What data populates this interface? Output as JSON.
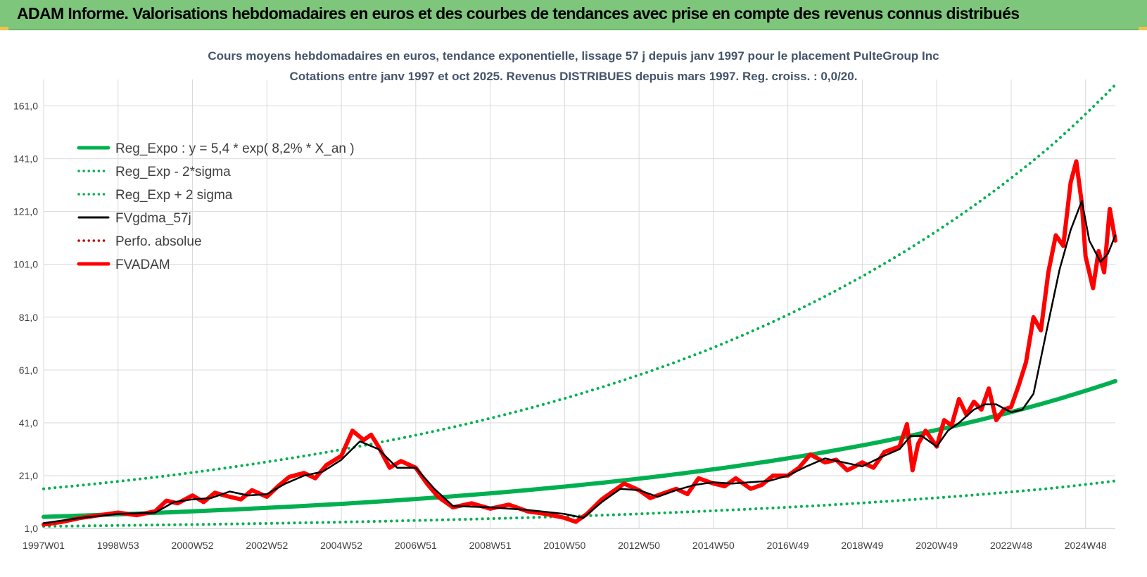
{
  "banner": {
    "title": "ADAM Informe. Valorisations hebdomadaires en euros et des courbes de tendances avec prise en compte des revenus connus distribués"
  },
  "colors": {
    "banner_bg": "#7dc67b",
    "trend_green": "#00b050",
    "adam_red": "#ff0000",
    "smooth_black": "#000000",
    "grid": "#d9d9d9"
  },
  "chart_data": {
    "type": "line",
    "title": "Cours moyens hebdomadaires en euros, tendance exponentielle, lissage 57 j depuis janv 1997 pour le placement PulteGroup Inc",
    "subtitle": "Cotations entre janv 1997 et oct 2025. Revenus DISTRIBUES depuis mars 1997. Reg. croiss. : 0,0/20.",
    "xlabel": "",
    "ylabel": "",
    "xlim": [
      1997.0,
      2025.8
    ],
    "ylim": [
      1.0,
      171.0
    ],
    "y_ticks": [
      1.0,
      21.0,
      41.0,
      61.0,
      81.0,
      101.0,
      121.0,
      141.0,
      161.0
    ],
    "y_tick_labels": [
      "1,0",
      "21,0",
      "41,0",
      "61,0",
      "81,0",
      "101,0",
      "121,0",
      "141,0",
      "161,0"
    ],
    "x_tick_labels": [
      "1997W01",
      "1998W53",
      "2000W52",
      "2002W52",
      "2004W52",
      "2006W51",
      "2008W51",
      "2010W50",
      "2012W50",
      "2014W50",
      "2016W49",
      "2018W49",
      "2020W49",
      "2022W48",
      "2024W48"
    ],
    "x_tick_years": [
      1997.0,
      1999.0,
      2001.0,
      2003.0,
      2005.0,
      2007.0,
      2009.0,
      2011.0,
      2013.0,
      2015.0,
      2017.0,
      2019.0,
      2021.0,
      2023.0,
      2025.0
    ],
    "grid": true,
    "legend_position": "top-left",
    "series": [
      {
        "name": "Reg_Expo : y = 5,4 * exp( 8,2% *  X_an )",
        "style": "solid-thick",
        "color": "#00b050",
        "x": [
          1997.0,
          2000.0,
          2003.0,
          2006.0,
          2009.0,
          2012.0,
          2015.0,
          2018.0,
          2021.0,
          2024.0,
          2025.8
        ],
        "y": [
          5.4,
          6.9,
          8.8,
          11.2,
          14.3,
          18.3,
          23.4,
          29.9,
          38.3,
          48.9,
          56.8
        ]
      },
      {
        "name": "Reg_Exp - 2*sigma",
        "style": "dotted",
        "color": "#00b050",
        "x": [
          1997.0,
          2000.0,
          2003.0,
          2006.0,
          2009.0,
          2012.0,
          2015.0,
          2018.0,
          2021.0,
          2024.0,
          2025.8
        ],
        "y": [
          1.8,
          2.3,
          2.9,
          3.7,
          4.7,
          6.0,
          7.7,
          9.8,
          12.6,
          16.1,
          19.0
        ]
      },
      {
        "name": "Reg_Exp + 2 sigma",
        "style": "dotted",
        "color": "#00b050",
        "x": [
          1997.0,
          2000.0,
          2003.0,
          2006.0,
          2009.0,
          2012.0,
          2015.0,
          2018.0,
          2021.0,
          2024.0,
          2025.8
        ],
        "y": [
          16.0,
          20.4,
          26.2,
          33.5,
          42.7,
          54.5,
          69.5,
          88.9,
          113.6,
          145.0,
          169.0
        ]
      },
      {
        "name": "FVgdma_57j",
        "style": "solid",
        "color": "#000000",
        "x": [
          1997.0,
          1998.0,
          1999.0,
          2000.0,
          2000.5,
          2001.0,
          2001.5,
          2002.0,
          2002.5,
          2003.0,
          2003.5,
          2004.0,
          2004.5,
          2005.0,
          2005.5,
          2006.0,
          2006.5,
          2007.0,
          2007.5,
          2008.0,
          2009.0,
          2010.0,
          2011.0,
          2011.5,
          2012.0,
          2012.5,
          2013.0,
          2013.5,
          2014.0,
          2014.5,
          2015.0,
          2015.5,
          2016.0,
          2016.5,
          2017.0,
          2017.5,
          2018.0,
          2018.5,
          2019.0,
          2019.5,
          2020.0,
          2020.3,
          2020.6,
          2021.0,
          2021.3,
          2021.6,
          2022.0,
          2022.3,
          2022.6,
          2023.0,
          2023.3,
          2023.6,
          2024.0,
          2024.3,
          2024.6,
          2024.9,
          2025.1,
          2025.4,
          2025.6,
          2025.8
        ],
        "y": [
          3.0,
          5.0,
          6.5,
          7.0,
          11.0,
          12.0,
          12.5,
          15.0,
          13.5,
          14.0,
          18.0,
          21.0,
          22.5,
          27.0,
          34.0,
          31.0,
          24.0,
          24.0,
          16.0,
          9.5,
          9.0,
          8.0,
          6.5,
          5.0,
          11.0,
          16.0,
          15.5,
          13.0,
          15.5,
          17.5,
          18.5,
          18.0,
          18.5,
          19.0,
          21.0,
          24.5,
          27.5,
          26.0,
          24.5,
          28.0,
          31.0,
          36.0,
          36.0,
          32.0,
          38.0,
          41.0,
          46.0,
          48.0,
          48.0,
          45.0,
          46.0,
          52.0,
          79.0,
          99.0,
          114.0,
          125.0,
          110.0,
          102.0,
          105.0,
          112.0
        ]
      },
      {
        "name": "Perfo. absolue",
        "style": "dotted",
        "color": "#c00000",
        "x": [],
        "y": []
      },
      {
        "name": "FVADAM",
        "style": "solid-thick",
        "color": "#ff0000",
        "x": [
          1997.0,
          1997.5,
          1998.0,
          1998.5,
          1999.0,
          1999.5,
          2000.0,
          2000.3,
          2000.6,
          2001.0,
          2001.3,
          2001.6,
          2002.0,
          2002.3,
          2002.6,
          2003.0,
          2003.3,
          2003.6,
          2004.0,
          2004.3,
          2004.6,
          2005.0,
          2005.3,
          2005.6,
          2005.8,
          2006.0,
          2006.3,
          2006.6,
          2007.0,
          2007.3,
          2007.6,
          2008.0,
          2008.5,
          2009.0,
          2009.5,
          2010.0,
          2010.5,
          2011.0,
          2011.3,
          2011.6,
          2012.0,
          2012.3,
          2012.6,
          2013.0,
          2013.3,
          2013.6,
          2014.0,
          2014.3,
          2014.6,
          2015.0,
          2015.3,
          2015.6,
          2016.0,
          2016.3,
          2016.6,
          2017.0,
          2017.3,
          2017.6,
          2018.0,
          2018.3,
          2018.6,
          2019.0,
          2019.3,
          2019.6,
          2020.0,
          2020.2,
          2020.35,
          2020.5,
          2020.7,
          2021.0,
          2021.2,
          2021.4,
          2021.6,
          2021.8,
          2022.0,
          2022.2,
          2022.4,
          2022.6,
          2022.8,
          2023.0,
          2023.2,
          2023.4,
          2023.6,
          2023.8,
          2024.0,
          2024.2,
          2024.4,
          2024.6,
          2024.75,
          2024.9,
          2025.0,
          2025.2,
          2025.35,
          2025.5,
          2025.65,
          2025.8
        ],
        "y": [
          2.5,
          3.5,
          5.0,
          6.0,
          7.0,
          6.0,
          7.5,
          11.5,
          10.5,
          13.5,
          11.0,
          14.5,
          13.0,
          12.0,
          15.5,
          13.0,
          17.0,
          20.5,
          22.0,
          20.0,
          25.0,
          28.5,
          38.0,
          34.5,
          36.5,
          32.0,
          24.0,
          26.5,
          24.0,
          18.0,
          13.0,
          9.0,
          10.5,
          8.5,
          10.0,
          7.5,
          6.5,
          5.0,
          3.5,
          6.5,
          12.0,
          15.0,
          18.0,
          15.5,
          12.5,
          14.0,
          16.0,
          14.0,
          20.0,
          18.0,
          17.0,
          20.0,
          16.0,
          17.5,
          21.0,
          21.0,
          24.0,
          29.0,
          26.0,
          27.0,
          23.0,
          26.0,
          24.0,
          30.0,
          32.0,
          40.5,
          23.0,
          33.0,
          38.0,
          32.0,
          42.0,
          40.0,
          50.0,
          44.0,
          49.0,
          46.0,
          54.0,
          42.0,
          46.0,
          47.0,
          55.0,
          64.0,
          81.0,
          76.0,
          98.0,
          112.0,
          108.0,
          132.0,
          140.0,
          124.0,
          104.0,
          92.0,
          106.0,
          98.0,
          122.0,
          110.0
        ]
      }
    ]
  }
}
